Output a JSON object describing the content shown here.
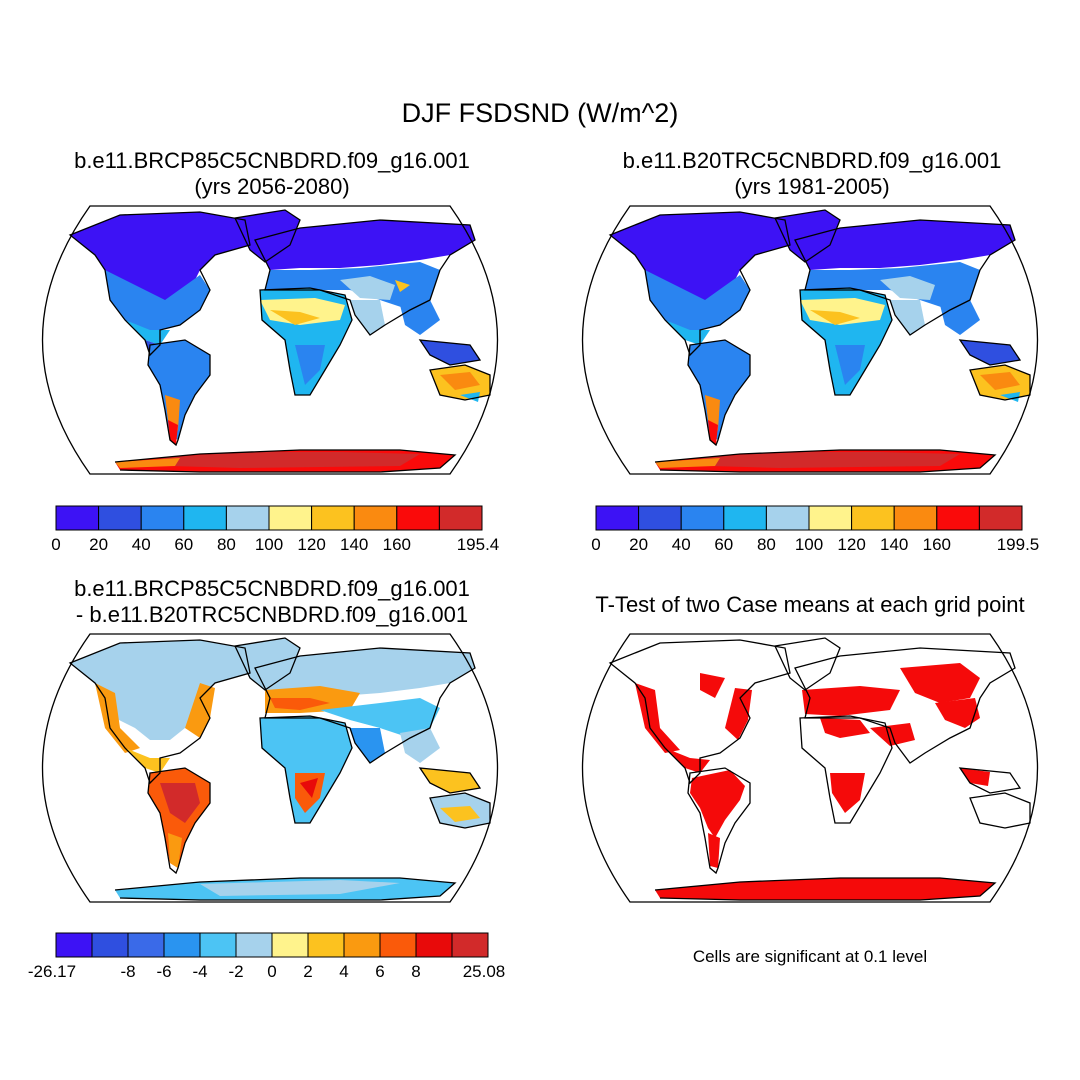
{
  "figure": {
    "title": "DJF FSDSND (W/m^2)",
    "note": "Cells are significant at 0.1 level"
  },
  "panels": [
    {
      "id": "p1",
      "title_line1": "b.e11.BRCP85C5CNBDRD.f09_g16.001",
      "title_line2": "(yrs 2056-2080)",
      "colorbar": {
        "colors": [
          "#3d12f5",
          "#2f4fe0",
          "#2a84f0",
          "#1fb6f0",
          "#a6d2ec",
          "#fff38c",
          "#fcc21f",
          "#fa8a10",
          "#fa0a0a",
          "#d22a2a"
        ],
        "labels": [
          "0",
          "20",
          "40",
          "60",
          "80",
          "100",
          "120",
          "140",
          "160",
          "",
          "195.4"
        ]
      }
    },
    {
      "id": "p2",
      "title_line1": "b.e11.B20TRC5CNBDRD.f09_g16.001",
      "title_line2": "(yrs 1981-2005)",
      "colorbar": {
        "colors": [
          "#3d12f5",
          "#2f4fe0",
          "#2a84f0",
          "#1fb6f0",
          "#a6d2ec",
          "#fff38c",
          "#fcc21f",
          "#fa8a10",
          "#fa0a0a",
          "#d22a2a"
        ],
        "labels": [
          "0",
          "20",
          "40",
          "60",
          "80",
          "100",
          "120",
          "140",
          "160",
          "",
          "199.5"
        ]
      }
    },
    {
      "id": "p3",
      "title_line1": "b.e11.BRCP85C5CNBDRD.f09_g16.001",
      "title_line2": "- b.e11.B20TRC5CNBDRD.f09_g16.001",
      "colorbar": {
        "colors": [
          "#3d12f5",
          "#2f4fe0",
          "#3a6ae8",
          "#2a94f0",
          "#4cc4f4",
          "#a6d2ec",
          "#fff38c",
          "#fcc21f",
          "#fa9a10",
          "#fa5a0a",
          "#e80a0a",
          "#d22a2a"
        ],
        "labels": [
          "-26.17",
          "",
          "-8",
          "-6",
          "-4",
          "-2",
          "0",
          "2",
          "4",
          "6",
          "8",
          "",
          "25.08"
        ]
      }
    },
    {
      "id": "p4",
      "title_line1": "T-Test of two Case means at each grid point",
      "title_line2": ""
    }
  ]
}
